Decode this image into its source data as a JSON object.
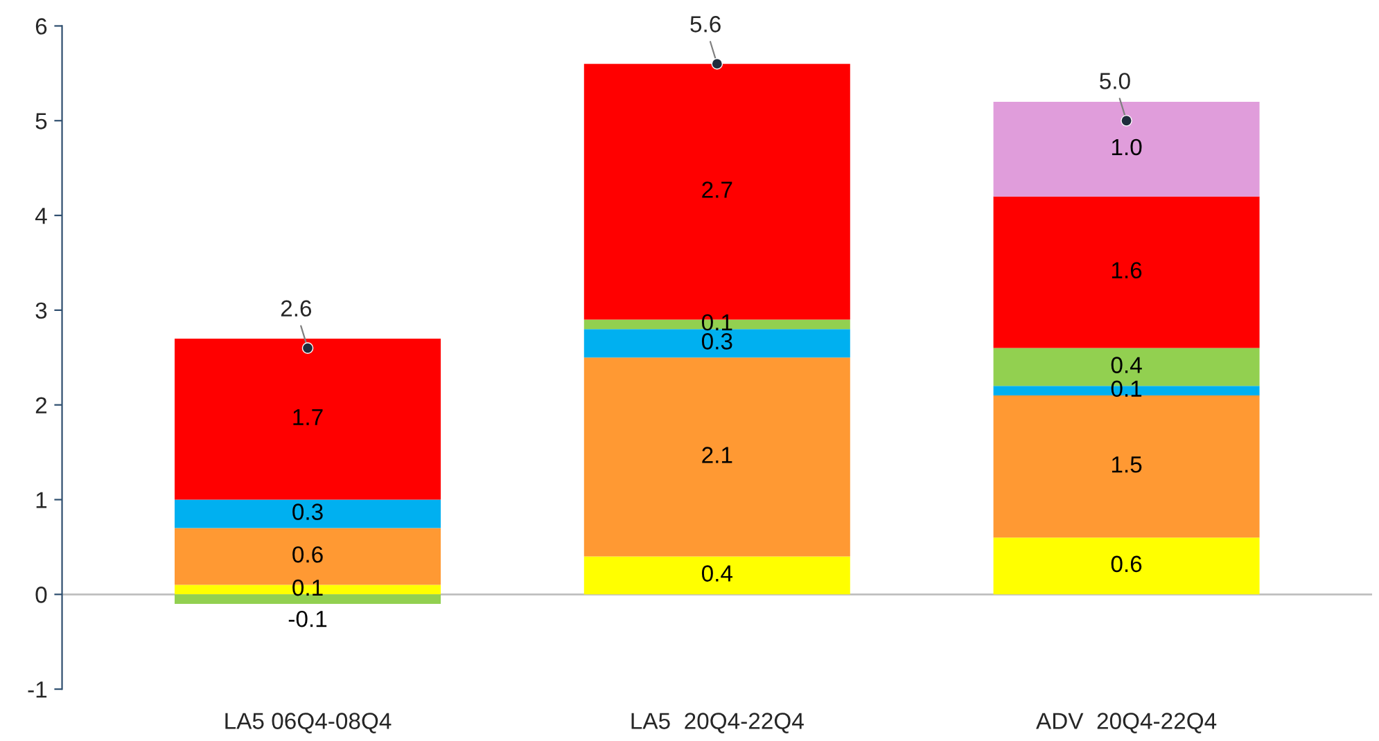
{
  "chart_data": {
    "type": "bar",
    "stacked": true,
    "categories": [
      "LA5 06Q4-08Q4",
      "LA5  20Q4-22Q4",
      "ADV  20Q4-22Q4"
    ],
    "series": [
      {
        "color": "#ffff00",
        "values": [
          0.1,
          0.4,
          0.6
        ],
        "value_labels": [
          "0.1",
          "0.4",
          "0.6"
        ]
      },
      {
        "color": "#ff9933",
        "values": [
          0.6,
          2.1,
          1.5
        ],
        "value_labels": [
          "0.6",
          "2.1",
          "1.5"
        ]
      },
      {
        "color": "#00b0f0",
        "values": [
          0.3,
          0.3,
          0.1
        ],
        "value_labels": [
          "0.3",
          "0.3",
          "0.1"
        ]
      },
      {
        "color": "#92d050",
        "values": [
          -0.1,
          0.1,
          0.4
        ],
        "value_labels": [
          "-0.1",
          "0.1",
          "0.4"
        ]
      },
      {
        "color": "#ff0000",
        "values": [
          1.7,
          2.7,
          1.6
        ],
        "value_labels": [
          "1.7",
          "2.7",
          "1.6"
        ]
      },
      {
        "color": "#e09ddb",
        "values": [
          null,
          null,
          1.0
        ],
        "value_labels": [
          null,
          null,
          "1.0"
        ]
      },
      {
        "type": "scatter",
        "color": "#1f2d3d",
        "marker": "circle",
        "values": [
          2.6,
          5.6,
          5.0
        ],
        "value_labels": [
          "2.6",
          "5.6",
          "5.0"
        ]
      }
    ],
    "ylim": [
      -1,
      6
    ],
    "yticks": [
      -1,
      0,
      1,
      2,
      3,
      4,
      5,
      6
    ],
    "ref_lines": [
      {
        "axis": "y",
        "value": 0,
        "color": "#bfbfbf"
      }
    ],
    "grid": false,
    "legend": false
  }
}
